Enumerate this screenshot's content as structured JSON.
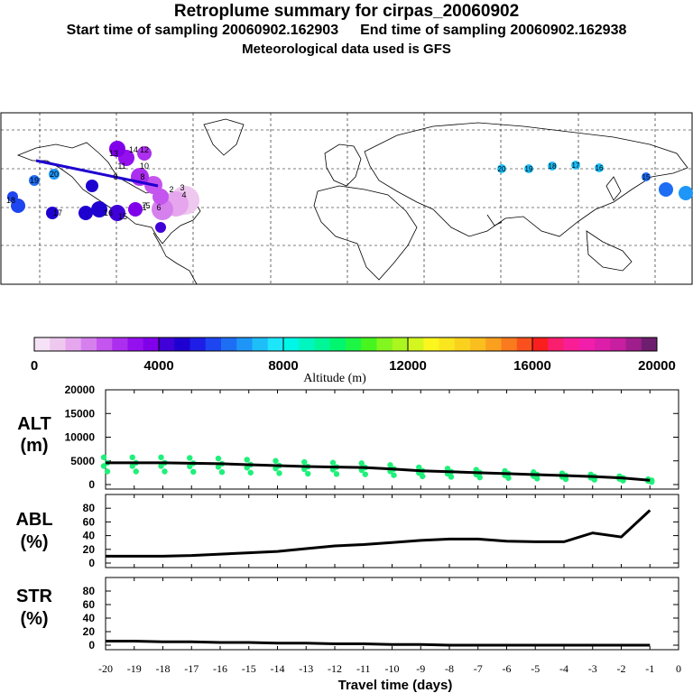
{
  "header": {
    "title": "Retroplume summary for cirpas_20060902",
    "start": "Start time of sampling 20060902.162903",
    "end": "End time of sampling 20060902.162938",
    "met": "Meteorological data used is GFS"
  },
  "colorbar": {
    "title": "Altitude (m)",
    "ticks": [
      "0",
      "4000",
      "8000",
      "12000",
      "16000",
      "20000"
    ],
    "colors": [
      "#f6e2f6",
      "#eec8ee",
      "#e6a6ee",
      "#d680ee",
      "#c455ee",
      "#ac2eee",
      "#9410ee",
      "#8000ea",
      "#4000d8",
      "#1e00d0",
      "#1e1ee6",
      "#1e46f0",
      "#1e6ef4",
      "#1e96f8",
      "#1ebef8",
      "#1ee6fa",
      "#00f6e6",
      "#00f6be",
      "#00f696",
      "#00f66e",
      "#1ef646",
      "#46f61e",
      "#82f61e",
      "#aaf61e",
      "#d2f61e",
      "#faf61e",
      "#fae61e",
      "#fad21e",
      "#fabe1e",
      "#faa01e",
      "#fa7a1e",
      "#fa501e",
      "#fa1e1e",
      "#fa1e6e",
      "#fa1e96",
      "#f01eaa",
      "#dc1eaa",
      "#c81ea0",
      "#a01e8c",
      "#6e1e6e"
    ]
  },
  "map_labels": {
    "north_america": [
      "13",
      "14",
      "12",
      "11",
      "10",
      "9",
      "8",
      "7",
      "6",
      "5",
      "4",
      "3",
      "2",
      "1",
      "15",
      "16",
      "17",
      "18",
      "19",
      "20"
    ],
    "asia": [
      "20",
      "19",
      "18",
      "17",
      "16",
      "15"
    ]
  },
  "chart_data": [
    {
      "type": "line",
      "panel": "ALT",
      "ylabel_line1": "ALT",
      "ylabel_line2": "(m)",
      "xlim": [
        -20,
        0
      ],
      "ylim": [
        0,
        20000
      ],
      "yticks": [
        "0",
        "5000",
        "10000",
        "15000",
        "20000"
      ],
      "x": [
        -20,
        -19,
        -18,
        -17,
        -16,
        -15,
        -14,
        -13,
        -12,
        -11,
        -10,
        -9,
        -8,
        -7,
        -6,
        -5,
        -4,
        -3,
        -2,
        -1
      ],
      "values": [
        4600,
        4600,
        4600,
        4500,
        4400,
        4200,
        4000,
        3800,
        3700,
        3600,
        3300,
        2900,
        2700,
        2500,
        2300,
        2100,
        1900,
        1700,
        1400,
        900
      ],
      "scatter_color": "#1ef07a"
    },
    {
      "type": "line",
      "panel": "ABL",
      "ylabel_line1": "ABL",
      "ylabel_line2": "(%)",
      "xlim": [
        -20,
        0
      ],
      "ylim": [
        0,
        100
      ],
      "yticks": [
        "0",
        "20",
        "40",
        "60",
        "80"
      ],
      "x": [
        -20,
        -19,
        -18,
        -17,
        -16,
        -15,
        -14,
        -13,
        -12,
        -11,
        -10,
        -9,
        -8,
        -7,
        -6,
        -5,
        -4,
        -3,
        -2,
        -1
      ],
      "values": [
        10,
        10,
        10,
        11,
        13,
        15,
        17,
        21,
        25,
        27,
        30,
        33,
        35,
        35,
        32,
        31,
        31,
        44,
        38,
        77
      ]
    },
    {
      "type": "line",
      "panel": "STR",
      "ylabel_line1": "STR",
      "ylabel_line2": "(%)",
      "xlim": [
        -20,
        0
      ],
      "ylim": [
        0,
        100
      ],
      "yticks": [
        "0",
        "20",
        "40",
        "60",
        "80"
      ],
      "x": [
        -20,
        -19,
        -18,
        -17,
        -16,
        -15,
        -14,
        -13,
        -12,
        -11,
        -10,
        -9,
        -8,
        -7,
        -6,
        -5,
        -4,
        -3,
        -2,
        -1
      ],
      "values": [
        6,
        6,
        5,
        5,
        4,
        4,
        3,
        3,
        2,
        2,
        1,
        1,
        0,
        0,
        0,
        0,
        0,
        0,
        0,
        0
      ],
      "xticks": [
        "-20",
        "-19",
        "-18",
        "-17",
        "-16",
        "-15",
        "-14",
        "-13",
        "-12",
        "-11",
        "-10",
        "-9",
        "-8",
        "-7",
        "-6",
        "-5",
        "-4",
        "-3",
        "-2",
        "-1",
        "0"
      ],
      "xlabel": "Travel time (days)"
    }
  ]
}
